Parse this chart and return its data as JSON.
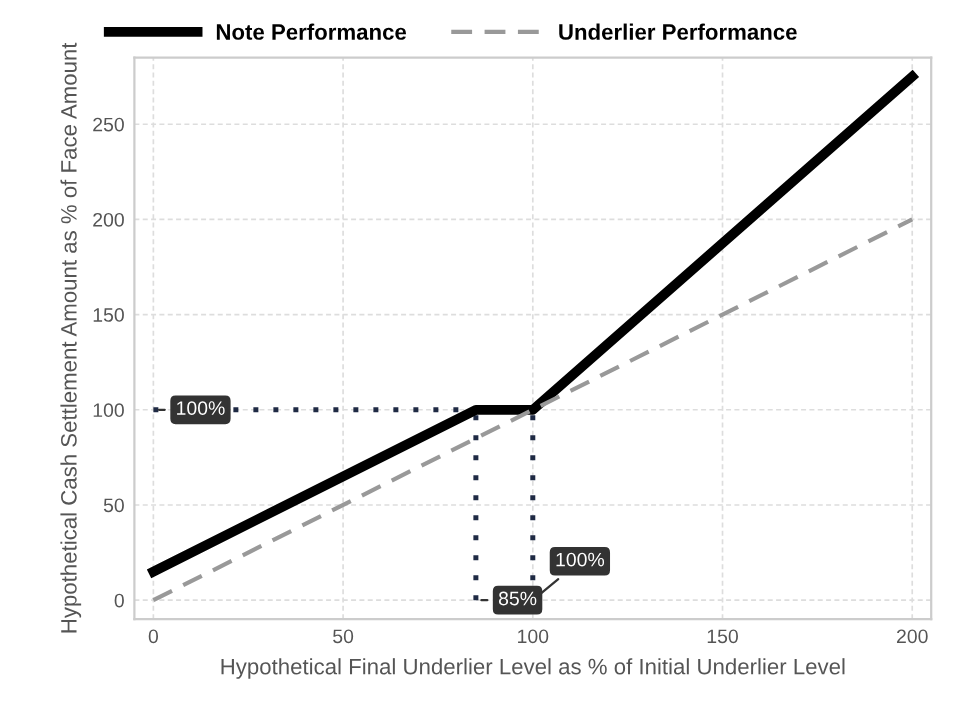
{
  "chart_data": {
    "type": "line",
    "xlabel": "Hypothetical Final Underlier Level as % of Initial Underlier Level",
    "ylabel": "Hypothetical Cash Settlement Amount as % of Face Amount",
    "series": [
      {
        "name": "Note Performance",
        "color": "#000000",
        "x": [
          0,
          85,
          100,
          200
        ],
        "values": [
          15,
          100,
          100,
          275
        ],
        "line_style": "solid"
      },
      {
        "name": "Underlier Performance",
        "color": "#999999",
        "x": [
          0,
          200
        ],
        "values": [
          0,
          200
        ],
        "line_style": "dashed"
      },
      {
        "color": "#1f2a44",
        "x": [
          0,
          85
        ],
        "values": [
          100,
          100
        ],
        "line_style": "dotted"
      },
      {
        "color": "#1f2a44",
        "x": [
          85,
          85
        ],
        "values": [
          0,
          100
        ],
        "line_style": "dotted"
      },
      {
        "color": "#1f2a44",
        "x": [
          100,
          100
        ],
        "values": [
          0,
          100
        ],
        "line_style": "dotted"
      }
    ],
    "annotations": [
      {
        "text": "100%",
        "x": 0,
        "y": 100
      },
      {
        "text": "85%",
        "x": 85,
        "y": 0
      },
      {
        "text": "100%",
        "x": 100,
        "y": 0
      }
    ],
    "xlim": [
      -5,
      205
    ],
    "ylim": [
      -10,
      285
    ],
    "xticks": [
      0,
      50,
      100,
      150,
      200
    ],
    "yticks": [
      0,
      50,
      100,
      150,
      200,
      250
    ],
    "grid": true,
    "legend": "top"
  }
}
